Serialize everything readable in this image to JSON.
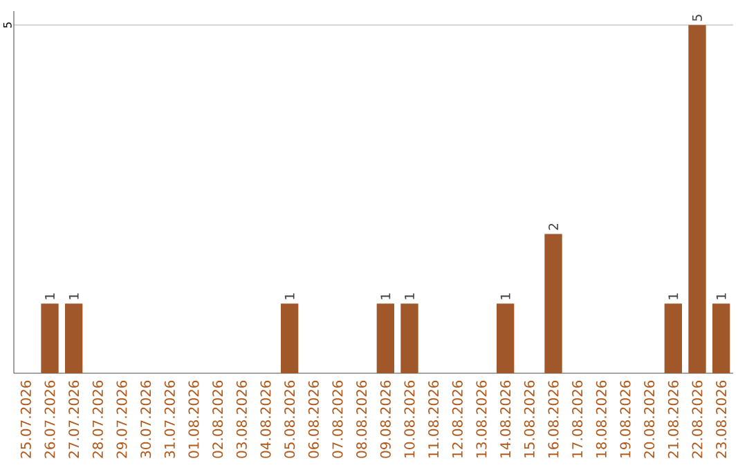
{
  "chart_data": {
    "type": "bar",
    "categories": [
      "25.07.2026",
      "26.07.2026",
      "27.07.2026",
      "28.07.2026",
      "29.07.2026",
      "30.07.2026",
      "31.07.2026",
      "01.08.2026",
      "02.08.2026",
      "03.08.2026",
      "04.08.2026",
      "05.08.2026",
      "06.08.2026",
      "07.08.2026",
      "08.08.2026",
      "09.08.2026",
      "10.08.2026",
      "11.08.2026",
      "12.08.2026",
      "13.08.2026",
      "14.08.2026",
      "15.08.2026",
      "16.08.2026",
      "17.08.2026",
      "18.08.2026",
      "19.08.2026",
      "20.08.2026",
      "21.08.2026",
      "22.08.2026",
      "23.08.2026"
    ],
    "values": [
      0,
      1,
      1,
      0,
      0,
      0,
      0,
      0,
      0,
      0,
      0,
      1,
      0,
      0,
      0,
      1,
      1,
      0,
      0,
      0,
      1,
      0,
      2,
      0,
      0,
      0,
      0,
      1,
      5,
      1
    ],
    "value_labels": [
      null,
      "1",
      "1",
      null,
      null,
      null,
      null,
      null,
      null,
      null,
      null,
      "1",
      null,
      null,
      null,
      "1",
      "1",
      null,
      null,
      null,
      "1",
      null,
      "2",
      null,
      null,
      null,
      null,
      "1",
      "5",
      "1"
    ],
    "color": "#a0582a",
    "ylim": [
      0,
      5.2
    ],
    "yticks": [
      5
    ],
    "grid": "y"
  }
}
